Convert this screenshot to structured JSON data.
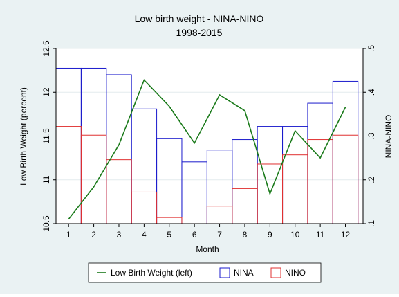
{
  "chart_data": {
    "type": "bar-line",
    "title": "Low birth weight - NINA-NINO",
    "subtitle": "1998-2015",
    "x_label": "Month",
    "y_label": "Low Birth Weight (percent)",
    "y2_label": "NINA-NINO",
    "x": [
      1,
      2,
      3,
      4,
      5,
      6,
      7,
      8,
      9,
      10,
      11,
      12
    ],
    "xlim": [
      0.5,
      12.7
    ],
    "xticks": [
      1,
      2,
      3,
      4,
      5,
      6,
      7,
      8,
      9,
      10,
      11,
      12
    ],
    "ylim": [
      10.5,
      12.5
    ],
    "yticks": [
      10.5,
      11,
      11.5,
      12,
      12.5
    ],
    "y2lim": [
      0.1,
      0.5
    ],
    "y2ticks": [
      {
        "value": 0.1,
        "label": ".1"
      },
      {
        "value": 0.2,
        "label": ".2"
      },
      {
        "value": 0.3,
        "label": ".3"
      },
      {
        "value": 0.4,
        "label": ".4"
      },
      {
        "value": 0.5,
        "label": ".5"
      }
    ],
    "grid": true,
    "legend": "bottom",
    "series": [
      {
        "name": "Low Birth Weight (left)",
        "color": "#1a7a1a",
        "kind": "line",
        "values": [
          10.55,
          10.92,
          11.4,
          12.14,
          11.84,
          11.42,
          11.97,
          11.79,
          10.84,
          11.56,
          11.25,
          11.83
        ]
      },
      {
        "name": "NINA",
        "color": "#1a1acc",
        "kind": "bar",
        "axis": "y2",
        "values": [
          0.455,
          0.455,
          0.44,
          0.362,
          0.294,
          0.241,
          0.268,
          0.292,
          0.322,
          0.322,
          0.375,
          0.425
        ]
      },
      {
        "name": "NINO",
        "color": "#e03030",
        "kind": "bar",
        "axis": "y2",
        "values": [
          0.322,
          0.302,
          0.246,
          0.172,
          0.114,
          0.1,
          0.14,
          0.18,
          0.236,
          0.257,
          0.292,
          0.302
        ]
      }
    ]
  }
}
